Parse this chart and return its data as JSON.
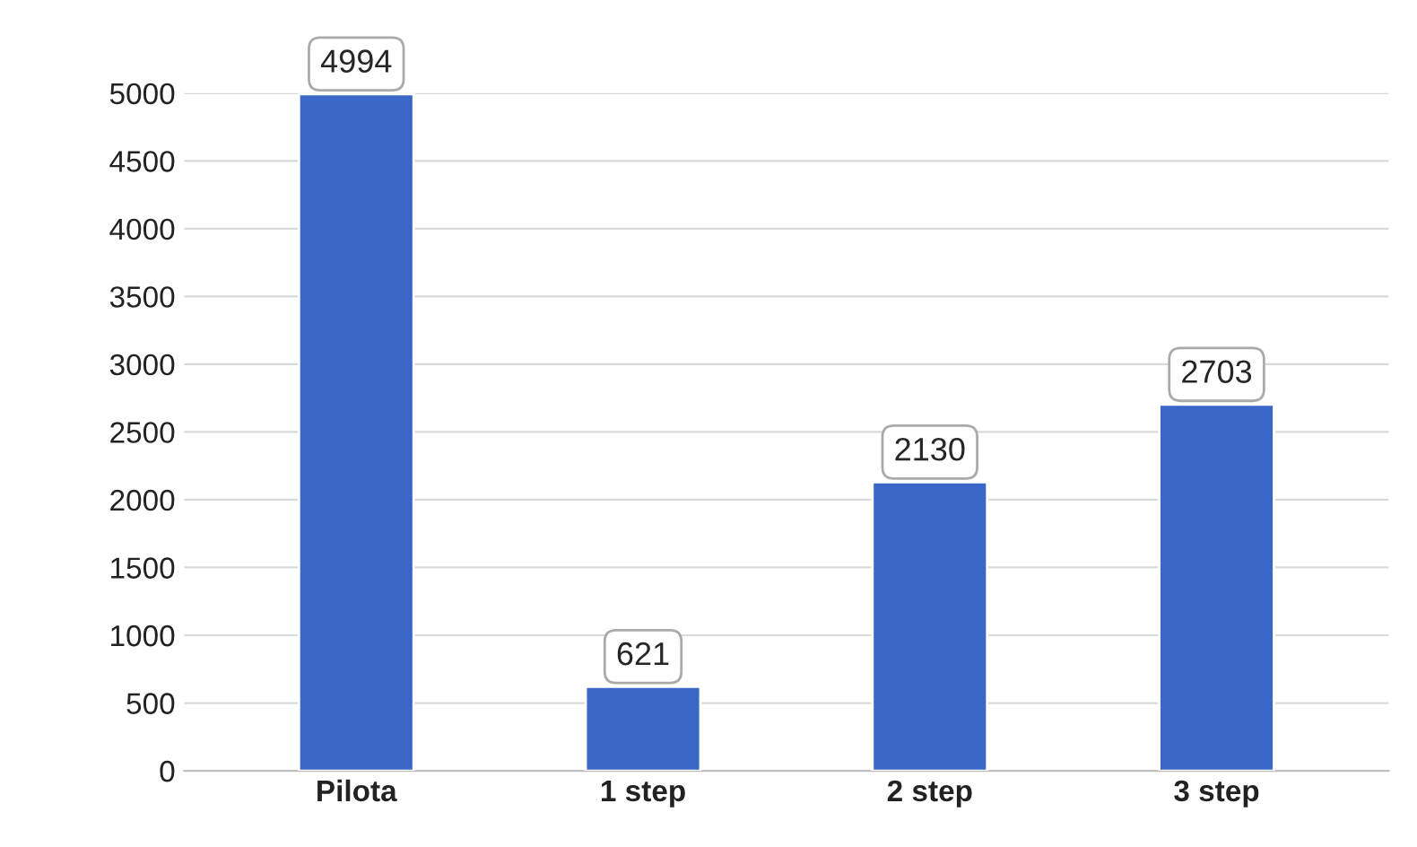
{
  "chart_data": {
    "type": "bar",
    "categories": [
      "Pilota",
      "1 step",
      "2 step",
      "3 step"
    ],
    "values": [
      4994,
      621,
      2130,
      2703
    ],
    "color": "#3a66c8",
    "ylim": [
      0,
      5000
    ],
    "yticks": [
      0,
      500,
      1000,
      1500,
      2000,
      2500,
      3000,
      3500,
      4000,
      4500,
      5000
    ],
    "grid": "y",
    "data_labels": true
  }
}
